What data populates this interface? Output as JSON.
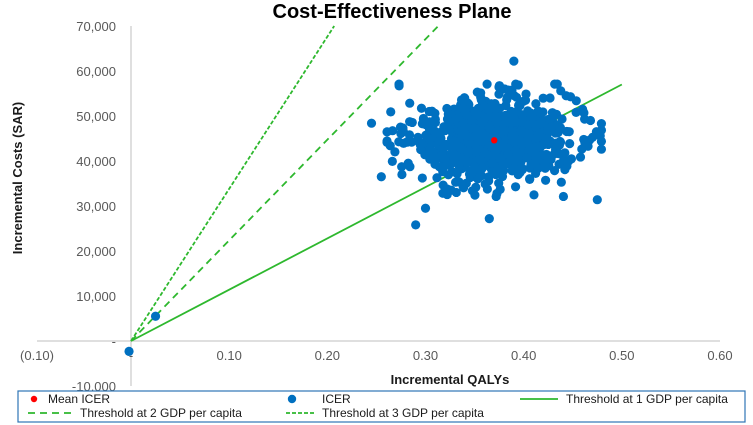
{
  "chart_data": {
    "type": "scatter",
    "title": "Cost-Effectiveness Plane",
    "xlabel": "Incremental QALYs",
    "ylabel": "Incremental Costs (SAR)",
    "xlim": [
      -0.1,
      0.6
    ],
    "ylim": [
      -10000,
      70000
    ],
    "x_ticks": [
      -0.1,
      0.0,
      0.1,
      0.2,
      0.3,
      0.4,
      0.5,
      0.6
    ],
    "x_tick_labels": [
      "(0.10)",
      "-",
      "0.10",
      "0.20",
      "0.30",
      "0.40",
      "0.50",
      "0.60"
    ],
    "y_ticks": [
      -10000,
      0,
      10000,
      20000,
      30000,
      40000,
      50000,
      60000,
      70000
    ],
    "y_tick_labels": [
      "-10,000",
      "-",
      "10,000",
      "20,000",
      "30,000",
      "40,000",
      "50,000",
      "60,000",
      "70,000"
    ],
    "gridlines": false,
    "legend_position": "bottom",
    "series": [
      {
        "name": "Mean ICER",
        "kind": "point",
        "color": "#ff0000",
        "points": [
          [
            0.37,
            44600
          ]
        ]
      },
      {
        "name": "ICER",
        "kind": "cloud",
        "color": "#0070c0",
        "cloud": {
          "n": 850,
          "mean_x": 0.37,
          "sd_x": 0.042,
          "mean_y": 44600,
          "sd_y": 4800,
          "seed": 11
        },
        "extra_points": [
          [
            0.025,
            5500
          ],
          [
            -0.002,
            -2300
          ],
          [
            0.29,
            25800
          ],
          [
            0.365,
            27200
          ],
          [
            0.475,
            31400
          ],
          [
            0.3,
            29500
          ],
          [
            0.39,
            62200
          ],
          [
            0.255,
            36500
          ],
          [
            0.245,
            48400
          ],
          [
            0.46,
            51500
          ]
        ]
      },
      {
        "name": "Threshold at 1 GDP per capita",
        "kind": "line",
        "color": "#2eb82e",
        "dash": "solid",
        "points": [
          [
            0,
            0
          ],
          [
            0.5,
            57000
          ]
        ]
      },
      {
        "name": "Threshold at 2 GDP per capita",
        "kind": "line",
        "color": "#2eb82e",
        "dash": "long",
        "points": [
          [
            0,
            0
          ],
          [
            0.313,
            70000
          ]
        ]
      },
      {
        "name": "Threshold at 3 GDP per capita",
        "kind": "line",
        "color": "#2eb82e",
        "dash": "short",
        "points": [
          [
            0,
            0
          ],
          [
            0.207,
            70000
          ]
        ]
      }
    ]
  }
}
